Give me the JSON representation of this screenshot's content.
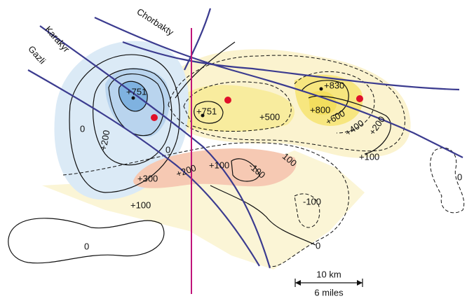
{
  "faults": [
    {
      "label": "Karakyr"
    },
    {
      "label": "Chorbakty"
    },
    {
      "label": "Gazli"
    }
  ],
  "contour_labels": [
    "+751",
    "+751",
    "+830",
    "+800",
    "+500",
    "+600",
    "+400",
    "+200",
    "+200",
    "0",
    "0",
    "+100",
    "+300",
    "+200",
    "+100",
    "-100",
    "100",
    "+100",
    "-100",
    "0",
    "0",
    "0"
  ],
  "scale": {
    "km": "10 km",
    "miles": "6 miles"
  }
}
